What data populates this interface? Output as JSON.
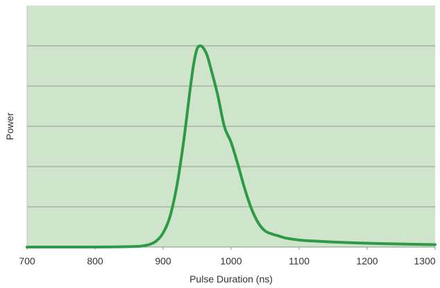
{
  "chart_data": {
    "type": "line",
    "title": "",
    "xlabel": "Pulse Duration (ns)",
    "ylabel": "Power",
    "xlim": [
      700,
      1300
    ],
    "ylim": [
      0,
      1
    ],
    "x_ticks": [
      "700",
      "800",
      "900",
      "1000",
      "1100",
      "1200",
      "1300"
    ],
    "y_gridlines": [
      0.2,
      0.4,
      0.6,
      0.8,
      1.0
    ],
    "y_tick_labels_shown": false,
    "grid": true,
    "legend": "none",
    "background_color": "#cfe5cb",
    "gridline_color": "#8f9a8c",
    "line_color": "#2e9a48",
    "series": [
      {
        "x": [
          700,
          800,
          860,
          870,
          880,
          890,
          900,
          910,
          920,
          930,
          940,
          945,
          950,
          955,
          960,
          965,
          970,
          980,
          990,
          1000,
          1010,
          1020,
          1030,
          1040,
          1050,
          1060,
          1070,
          1080,
          1100,
          1120,
          1150,
          1200,
          1250,
          1300
        ],
        "y": [
          0.0,
          0.0,
          0.003,
          0.006,
          0.013,
          0.03,
          0.07,
          0.15,
          0.3,
          0.52,
          0.79,
          0.91,
          0.985,
          1.0,
          0.985,
          0.95,
          0.89,
          0.76,
          0.6,
          0.52,
          0.41,
          0.29,
          0.19,
          0.12,
          0.08,
          0.065,
          0.055,
          0.045,
          0.035,
          0.03,
          0.025,
          0.019,
          0.015,
          0.012
        ]
      }
    ]
  }
}
